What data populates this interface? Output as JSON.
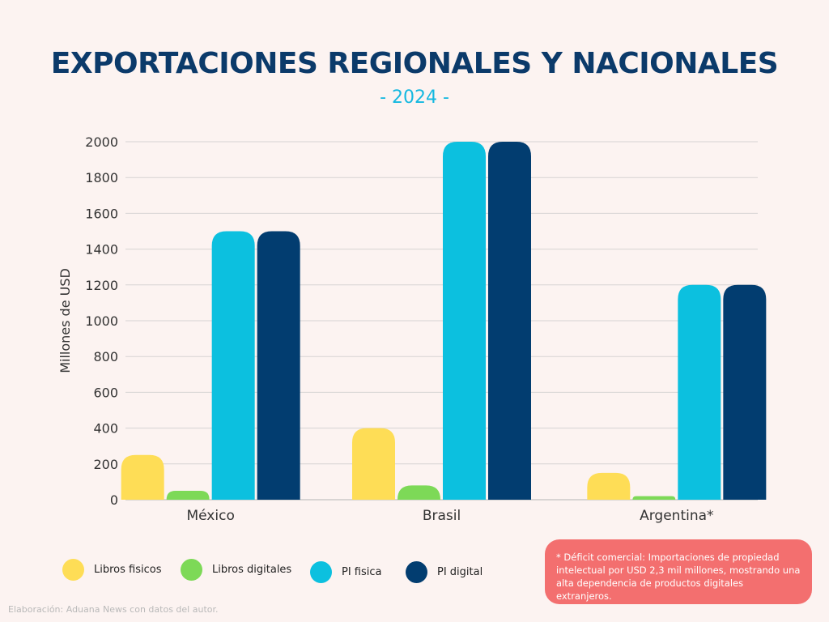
{
  "header": {
    "title": "EXPORTACIONES REGIONALES Y NACIONALES",
    "subtitle": "- 2024 -"
  },
  "chart_data": {
    "type": "bar",
    "categories": [
      "México",
      "Brasil",
      "Argentina*"
    ],
    "series": [
      {
        "name": "Libros fisicos",
        "values": [
          250,
          400,
          150
        ],
        "color": "#fedd56"
      },
      {
        "name": "Libros digitales",
        "values": [
          50,
          80,
          20
        ],
        "color": "#7dd957"
      },
      {
        "name": "PI fisica",
        "values": [
          1500,
          2000,
          1200
        ],
        "color": "#0cc0df"
      },
      {
        "name": "PI digital",
        "values": [
          1500,
          2000,
          1200
        ],
        "color": "#023d70"
      }
    ],
    "ylabel": "Millones de USD",
    "xlabel": "",
    "ylim": [
      0,
      2000
    ],
    "yticks": [
      0,
      200,
      400,
      600,
      800,
      1000,
      1200,
      1400,
      1600,
      1800,
      2000
    ],
    "grid": true,
    "legend_position": "bottom-left"
  },
  "note": {
    "text": "* Déficit comercial: Importaciones de propiedad intelectual por USD 2,3 mil millones, mostrando una alta dependencia de productos digitales extranjeros."
  },
  "credit": {
    "text": "Elaboración: Aduana News con datos del autor."
  }
}
